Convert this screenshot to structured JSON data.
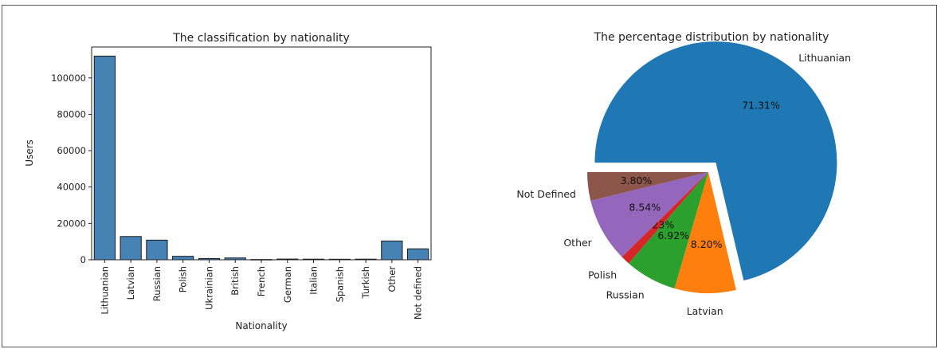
{
  "chart_data": [
    {
      "type": "bar",
      "title": "The classification by nationality",
      "xlabel": "Nationality",
      "ylabel": "Users",
      "categories": [
        "Lithuanian",
        "Latvian",
        "Russian",
        "Polish",
        "Ukrainian",
        "British",
        "French",
        "German",
        "Italian",
        "Spanish",
        "Turkish",
        "Other",
        "Not defined"
      ],
      "values": [
        112000,
        12800,
        10800,
        1900,
        700,
        1000,
        150,
        400,
        350,
        300,
        350,
        10300,
        6000
      ],
      "yticks": [
        0,
        20000,
        40000,
        60000,
        80000,
        100000
      ],
      "ylim": [
        0,
        117000
      ],
      "bar_color": "#4682b4",
      "edge_color": "#1a1a1a",
      "grid": false
    },
    {
      "type": "pie",
      "title": "The percentage distribution by nationality",
      "slices": [
        {
          "label": "Lithuanian",
          "value": 71.31,
          "pct": "71.31%",
          "color": "#1f77b4",
          "explode": 0.1
        },
        {
          "label": "Latvian",
          "value": 8.2,
          "pct": "8.20%",
          "color": "#ff7f0e",
          "explode": 0
        },
        {
          "label": "Russian",
          "value": 6.92,
          "pct": "6.92%",
          "color": "#2ca02c",
          "explode": 0
        },
        {
          "label": "Polish",
          "value": 1.23,
          "pct": "1.23%",
          "color": "#d62728",
          "explode": 0
        },
        {
          "label": "Other",
          "value": 8.54,
          "pct": "8.54%",
          "color": "#9467bd",
          "explode": 0
        },
        {
          "label": "Not Defined",
          "value": 3.8,
          "pct": "3.80%",
          "color": "#8c564b",
          "explode": 0
        }
      ],
      "start_angle": 180,
      "direction": "clockwise"
    }
  ]
}
